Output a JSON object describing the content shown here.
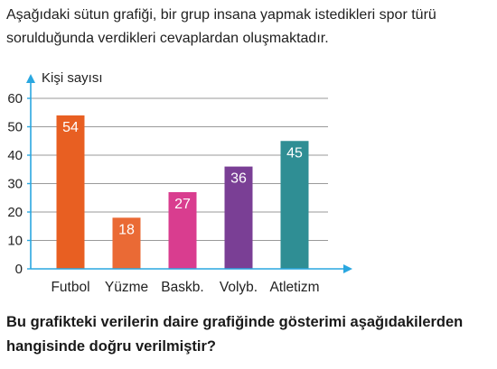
{
  "intro_text": "Aşağıdaki sütun grafiği, bir grup insana yapmak istedikleri spor türü sorulduğunda verdikleri cevaplardan oluşmaktadır.",
  "question_text": "Bu grafikteki verilerin daire grafiğinde gösterimi aşağıdakilerden hangisinde doğru verilmiştir?",
  "chart_data": {
    "type": "bar",
    "title": "",
    "xlabel": "",
    "ylabel": "Kişi sayısı",
    "categories": [
      "Futbol",
      "Yüzme",
      "Baskb.",
      "Volyb.",
      "Atletizm"
    ],
    "values": [
      54,
      18,
      27,
      36,
      45
    ],
    "colors": [
      "#e85f22",
      "#ea6a35",
      "#d93d8f",
      "#7a3f95",
      "#2f8e94"
    ],
    "yticks": [
      0,
      10,
      20,
      30,
      40,
      50,
      60
    ],
    "ylim": [
      0,
      60
    ],
    "grid": true,
    "axis_color": "#2aa7e0",
    "data_labels": true
  }
}
